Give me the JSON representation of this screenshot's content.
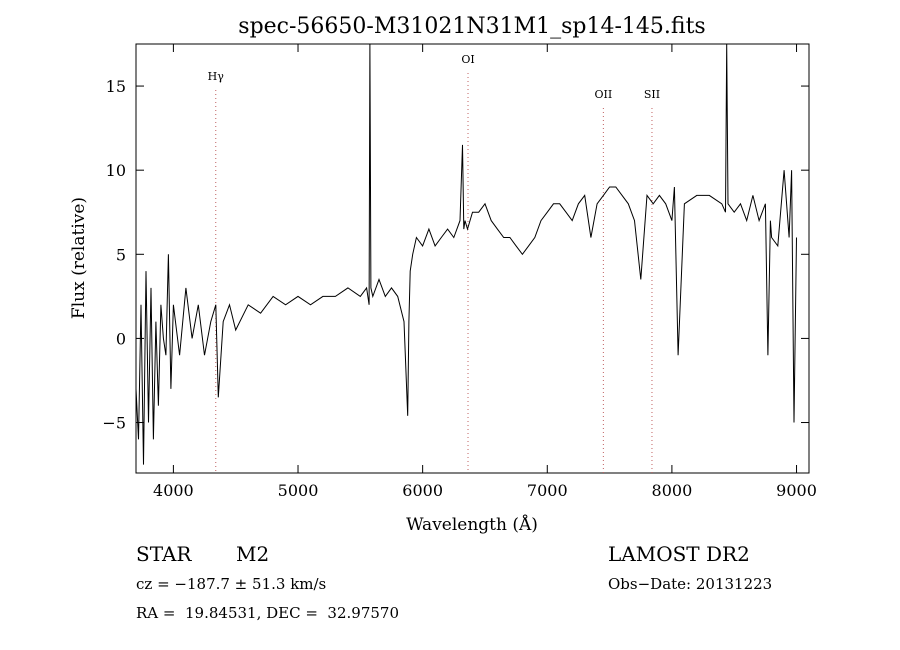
{
  "chart_data": {
    "type": "line",
    "title": "spec-56650-M31021N31M1_sp14-145.fits",
    "xlabel": "Wavelength (Å)",
    "ylabel": "Flux (relative)",
    "xlim": [
      3700,
      9100
    ],
    "ylim": [
      -8,
      17.5
    ],
    "xticks": [
      4000,
      5000,
      6000,
      7000,
      8000,
      9000
    ],
    "yticks": [
      -5,
      0,
      5,
      10,
      15
    ],
    "grid": false,
    "line_color": "#000000",
    "marker_color": "#c06060",
    "series": [
      {
        "x": [
          3700,
          3720,
          3740,
          3760,
          3780,
          3800,
          3820,
          3840,
          3860,
          3880,
          3900,
          3920,
          3940,
          3960,
          3980,
          4000,
          4050,
          4100,
          4150,
          4200,
          4250,
          4300,
          4340,
          4360,
          4400,
          4450,
          4500,
          4600,
          4700,
          4800,
          4900,
          5000,
          5100,
          5200,
          5300,
          5400,
          5500,
          5550,
          5570,
          5577,
          5585,
          5600,
          5650,
          5700,
          5750,
          5800,
          5850,
          5880,
          5890,
          5900,
          5920,
          5950,
          6000,
          6050,
          6100,
          6150,
          6200,
          6250,
          6300,
          6320,
          6330,
          6340,
          6360,
          6400,
          6450,
          6500,
          6550,
          6600,
          6650,
          6700,
          6750,
          6800,
          6850,
          6900,
          6950,
          7000,
          7050,
          7100,
          7150,
          7200,
          7250,
          7300,
          7350,
          7400,
          7450,
          7500,
          7550,
          7600,
          7650,
          7700,
          7750,
          7800,
          7850,
          7900,
          7950,
          8000,
          8020,
          8050,
          8100,
          8200,
          8300,
          8400,
          8430,
          8440,
          8450,
          8500,
          8550,
          8600,
          8650,
          8700,
          8750,
          8770,
          8790,
          8800,
          8850,
          8900,
          8920,
          8940,
          8960,
          8980,
          9000
        ],
        "y": [
          -3,
          -6,
          2,
          -7.5,
          4,
          -5,
          3,
          -6,
          1,
          -4,
          2,
          0,
          -1,
          5,
          -3,
          2,
          -1,
          3,
          0,
          2,
          -1,
          1,
          2,
          -3.5,
          1,
          2,
          0.5,
          2,
          1.5,
          2.5,
          2,
          2.5,
          2,
          2.5,
          2.5,
          3,
          2.5,
          3,
          2,
          17.5,
          3,
          2.5,
          3.5,
          2.5,
          3,
          2.5,
          1,
          -4.6,
          1,
          4,
          5,
          6,
          5.5,
          6.5,
          5.5,
          6,
          6.5,
          6,
          7,
          11.5,
          6.5,
          7,
          6.5,
          7.5,
          7.5,
          8,
          7,
          6.5,
          6,
          6,
          5.5,
          5,
          5.5,
          6,
          7,
          7.5,
          8,
          8,
          7.5,
          7,
          8,
          8.5,
          6,
          8,
          8.5,
          9,
          9,
          8.5,
          8,
          7,
          3.5,
          8.5,
          8,
          8.5,
          8,
          7,
          9,
          -1,
          8,
          8.5,
          8.5,
          8,
          7.5,
          17.5,
          8,
          7.5,
          8,
          7,
          8.5,
          7,
          8,
          -1,
          7,
          6,
          5.5,
          10,
          8,
          6,
          10,
          -5,
          6
        ]
      }
    ],
    "lines": [
      {
        "label": "Hγ",
        "x": 4340
      },
      {
        "label": "OI",
        "x": 6364
      },
      {
        "label": "OII",
        "x": 7450
      },
      {
        "label": "SII",
        "x": 7840
      }
    ]
  },
  "info": {
    "class_label": "STAR",
    "subclass": "M2",
    "survey": "LAMOST DR2",
    "cz": "cz = −187.7 ± 51.3 km/s",
    "obs_date": "Obs−Date: 20131223",
    "coords": "RA =  19.84531, DEC =  32.97570"
  }
}
